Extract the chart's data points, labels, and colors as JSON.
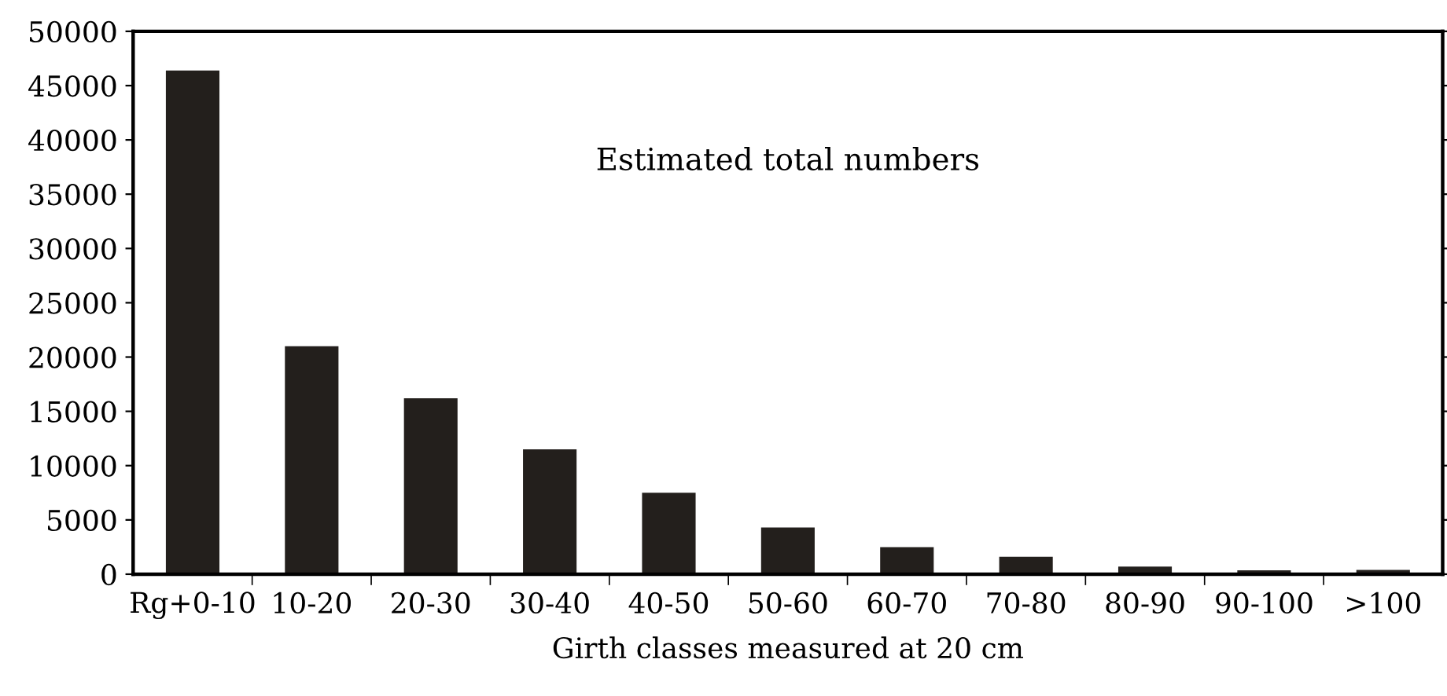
{
  "chart_data": {
    "type": "bar",
    "title": "Estimated total numbers",
    "xlabel": "Girth classes measured at 20 cm",
    "categories": [
      "Rg+0-10",
      "10-20",
      "20-30",
      "30-40",
      "40-50",
      "50-60",
      "60-70",
      "70-80",
      "80-90",
      "90-100",
      ">100"
    ],
    "values": [
      46400,
      21000,
      16200,
      11500,
      7500,
      4300,
      2500,
      1600,
      700,
      350,
      400
    ],
    "color": "#231f1c",
    "ylim": [
      0,
      50000
    ],
    "yticks": [
      0,
      5000,
      10000,
      15000,
      20000,
      25000,
      30000,
      35000,
      40000,
      45000,
      50000
    ],
    "grid": false,
    "legend": false
  }
}
